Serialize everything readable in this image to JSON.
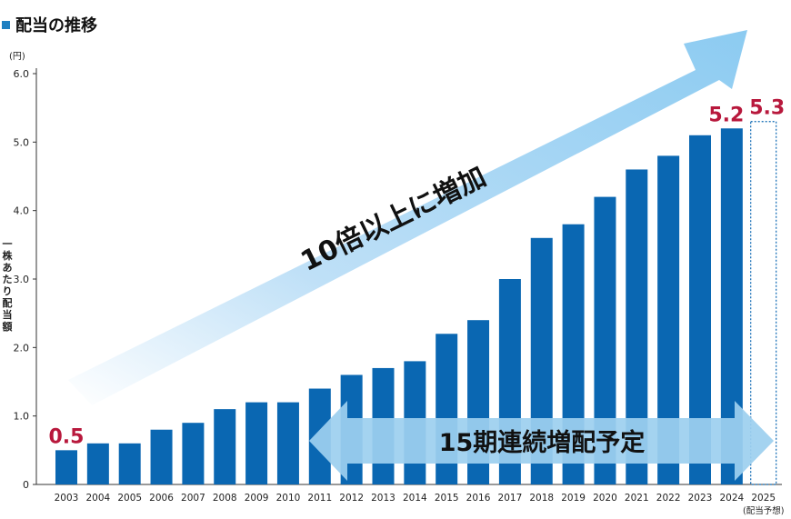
{
  "header": {
    "title": "配当の推移"
  },
  "colors": {
    "bar": "#0a67b2",
    "label": "#b8183c",
    "axis": "#333333"
  },
  "chart_data": {
    "type": "bar",
    "title": "配当の推移",
    "ylabel": "一株あたり配当額",
    "yunit": "(円)",
    "ylim": [
      0,
      6
    ],
    "yticks": [
      "0",
      "1.0",
      "2.0",
      "3.0",
      "4.0",
      "5.0",
      "6.0"
    ],
    "categories": [
      "2003",
      "2004",
      "2005",
      "2006",
      "2007",
      "2008",
      "2009",
      "2010",
      "2011",
      "2012",
      "2013",
      "2014",
      "2015",
      "2016",
      "2017",
      "2018",
      "2019",
      "2020",
      "2021",
      "2022",
      "2023",
      "2024",
      "2025"
    ],
    "values": [
      0.5,
      0.6,
      0.6,
      0.8,
      0.9,
      1.1,
      1.2,
      1.2,
      1.4,
      1.6,
      1.7,
      1.8,
      2.2,
      2.4,
      3.0,
      3.6,
      3.8,
      4.2,
      4.6,
      4.8,
      5.1,
      5.2,
      5.3
    ],
    "forecast_index": 22,
    "forecast_note": "(配当予想)",
    "data_labels": [
      {
        "index": 0,
        "text": "0.5"
      },
      {
        "index": 21,
        "text": "5.2"
      },
      {
        "index": 22,
        "text": "5.3"
      }
    ],
    "annotations": {
      "growth_arrow": "10倍以上に増加",
      "streak_arrow": "15期連続増配予定"
    }
  }
}
